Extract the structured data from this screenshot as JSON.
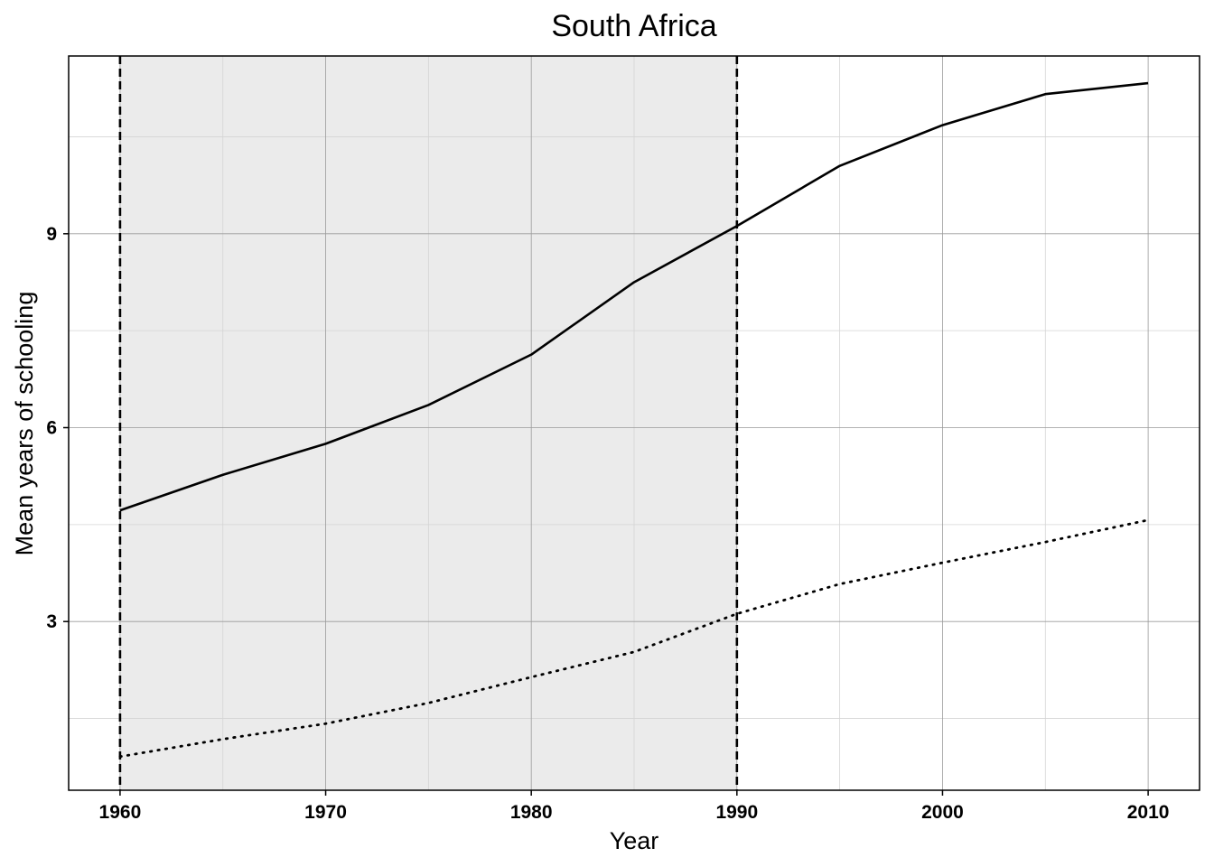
{
  "chart_data": {
    "type": "line",
    "title": "South Africa",
    "xlabel": "Year",
    "ylabel": "Mean years of schooling",
    "xlim": [
      1957.5,
      2012.5
    ],
    "ylim": [
      0.39,
      11.75
    ],
    "x_ticks": [
      1960,
      1970,
      1980,
      1990,
      2000,
      2010
    ],
    "y_ticks": [
      3,
      6,
      9
    ],
    "grid": true,
    "legend": "none",
    "shaded_region": {
      "x_start": 1960,
      "x_end": 1990,
      "color": "#ebebeb"
    },
    "vertical_reference_lines": [
      1960,
      1990
    ],
    "series": [
      {
        "style": "solid",
        "x": [
          1960,
          1965,
          1970,
          1975,
          1980,
          1985,
          1990,
          1995,
          2000,
          2005,
          2010
        ],
        "y": [
          4.72,
          5.27,
          5.75,
          6.35,
          7.13,
          8.25,
          9.12,
          10.05,
          10.68,
          11.16,
          11.33
        ]
      },
      {
        "style": "dotted",
        "x": [
          1960,
          1965,
          1970,
          1975,
          1980,
          1985,
          1990,
          1995,
          2000,
          2005,
          2010
        ],
        "y": [
          0.91,
          1.18,
          1.42,
          1.74,
          2.14,
          2.53,
          3.12,
          3.58,
          3.91,
          4.23,
          4.57
        ]
      }
    ]
  }
}
